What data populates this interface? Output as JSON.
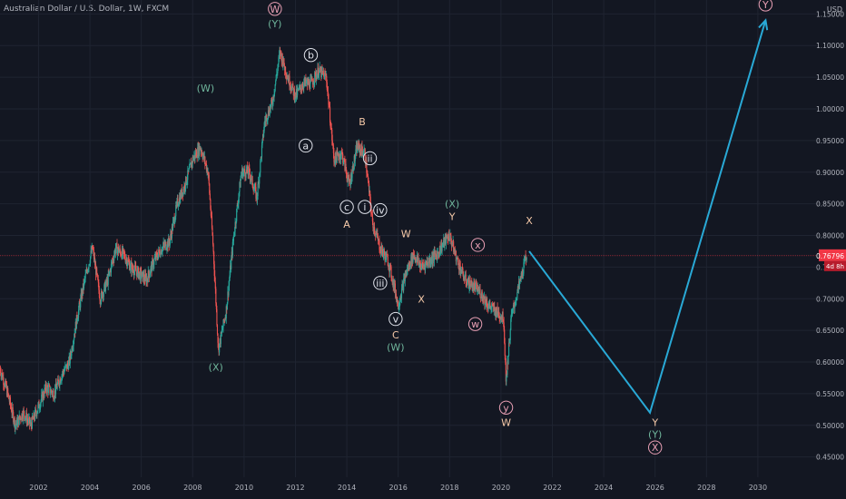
{
  "header": {
    "title": "Australian Dollar / U.S. Dollar, 1W, FXCM"
  },
  "price_axis": {
    "currency": "USD"
  },
  "chart_data": {
    "type": "line",
    "title": "Australian Dollar / U.S. Dollar, 1W, FXCM",
    "xlabel": "",
    "ylabel": "",
    "xlim": [
      2000.5,
      2032.3
    ],
    "ylim": [
      0.418,
      1.172
    ],
    "x_ticks": [
      "2002",
      "2004",
      "2006",
      "2008",
      "2010",
      "2012",
      "2014",
      "2016",
      "2018",
      "2020",
      "2022",
      "2024",
      "2026",
      "2028",
      "2030"
    ],
    "y_ticks": [
      "0.45000",
      "0.50000",
      "0.55000",
      "0.60000",
      "0.65000",
      "0.70000",
      "0.75000",
      "0.80000",
      "0.85000",
      "0.90000",
      "0.95000",
      "1.00000",
      "1.05000",
      "1.10000",
      "1.15000"
    ],
    "grid": true,
    "current_price": {
      "label": "0.76796",
      "value": 0.768,
      "countdown": "4d 8h",
      "color": "#f23645"
    },
    "colors": {
      "up": "#26a69a",
      "down": "#ef5350",
      "projection": "#29a9d6",
      "wave_white": "#e0e3eb",
      "wave_orange": "#f5c9a8",
      "wave_pink": "#e89fb4",
      "wave_green": "#6fb59b"
    },
    "series": [
      {
        "x": [
          2000.5,
          2000.8,
          2001.1,
          2001.4,
          2001.7,
          2002.0,
          2002.3,
          2002.6,
          2002.9,
          2003.2,
          2003.5,
          2003.8,
          2004.1,
          2004.4,
          2004.7,
          2005.0,
          2005.3,
          2005.6,
          2005.9,
          2006.2,
          2006.5,
          2006.8,
          2007.1,
          2007.4,
          2007.7,
          2008.0,
          2008.3,
          2008.6,
          2008.8,
          2009.0,
          2009.3,
          2009.6,
          2009.9,
          2010.2,
          2010.5,
          2010.8,
          2011.1,
          2011.4,
          2011.7,
          2012.0,
          2012.3,
          2012.6,
          2012.9,
          2013.2,
          2013.5,
          2013.8,
          2014.1,
          2014.4,
          2014.7,
          2015.0,
          2015.3,
          2015.6,
          2015.9,
          2016.0,
          2016.3,
          2016.6,
          2016.9,
          2017.2,
          2017.5,
          2017.8,
          2018.0,
          2018.3,
          2018.6,
          2018.9,
          2019.2,
          2019.5,
          2019.8,
          2020.1,
          2020.2,
          2020.4,
          2020.7,
          2021.0
        ],
        "values": [
          0.59,
          0.55,
          0.5,
          0.52,
          0.5,
          0.53,
          0.56,
          0.55,
          0.58,
          0.6,
          0.67,
          0.73,
          0.78,
          0.7,
          0.73,
          0.78,
          0.77,
          0.75,
          0.74,
          0.73,
          0.76,
          0.78,
          0.79,
          0.85,
          0.88,
          0.92,
          0.94,
          0.9,
          0.78,
          0.62,
          0.68,
          0.8,
          0.9,
          0.9,
          0.86,
          0.98,
          1.01,
          1.09,
          1.05,
          1.02,
          1.04,
          1.04,
          1.06,
          1.05,
          0.92,
          0.93,
          0.88,
          0.94,
          0.93,
          0.82,
          0.78,
          0.76,
          0.71,
          0.69,
          0.74,
          0.77,
          0.75,
          0.76,
          0.77,
          0.79,
          0.8,
          0.76,
          0.73,
          0.72,
          0.71,
          0.69,
          0.68,
          0.67,
          0.57,
          0.67,
          0.72,
          0.77
        ]
      },
      {
        "x": [
          2021.1,
          2025.8,
          2030.3
        ],
        "values": [
          0.775,
          0.52,
          1.14
        ]
      }
    ]
  },
  "wave_labels": [
    {
      "text": "W",
      "x": 2011.2,
      "y": 1.158,
      "circle": true,
      "color": "wave_pink"
    },
    {
      "text": "(Y)",
      "x": 2011.2,
      "y": 1.135,
      "circle": false,
      "color": "wave_green"
    },
    {
      "text": "(W)",
      "x": 2008.5,
      "y": 1.033,
      "circle": false,
      "color": "wave_green"
    },
    {
      "text": "(X)",
      "x": 2008.9,
      "y": 0.592,
      "circle": false,
      "color": "wave_green"
    },
    {
      "text": "b",
      "x": 2012.6,
      "y": 1.085,
      "circle": true,
      "color": "wave_white"
    },
    {
      "text": "a",
      "x": 2012.4,
      "y": 0.942,
      "circle": true,
      "color": "wave_white"
    },
    {
      "text": "B",
      "x": 2014.6,
      "y": 0.98,
      "circle": false,
      "color": "wave_orange"
    },
    {
      "text": "ii",
      "x": 2014.9,
      "y": 0.922,
      "circle": true,
      "color": "wave_white"
    },
    {
      "text": "c",
      "x": 2014.0,
      "y": 0.845,
      "circle": true,
      "color": "wave_white"
    },
    {
      "text": "A",
      "x": 2014.0,
      "y": 0.818,
      "circle": false,
      "color": "wave_orange"
    },
    {
      "text": "i",
      "x": 2014.7,
      "y": 0.845,
      "circle": true,
      "color": "wave_white"
    },
    {
      "text": "iv",
      "x": 2015.3,
      "y": 0.84,
      "circle": true,
      "color": "wave_white"
    },
    {
      "text": "W",
      "x": 2016.3,
      "y": 0.803,
      "circle": false,
      "color": "wave_orange"
    },
    {
      "text": "iii",
      "x": 2015.3,
      "y": 0.725,
      "circle": true,
      "color": "wave_white"
    },
    {
      "text": "X",
      "x": 2016.9,
      "y": 0.7,
      "circle": false,
      "color": "wave_orange"
    },
    {
      "text": "v",
      "x": 2015.9,
      "y": 0.668,
      "circle": true,
      "color": "wave_white"
    },
    {
      "text": "C",
      "x": 2015.9,
      "y": 0.643,
      "circle": false,
      "color": "wave_orange"
    },
    {
      "text": "(W)",
      "x": 2015.9,
      "y": 0.624,
      "circle": false,
      "color": "wave_green"
    },
    {
      "text": "(X)",
      "x": 2018.1,
      "y": 0.85,
      "circle": false,
      "color": "wave_green"
    },
    {
      "text": "Y",
      "x": 2018.1,
      "y": 0.83,
      "circle": false,
      "color": "wave_orange"
    },
    {
      "text": "x",
      "x": 2019.1,
      "y": 0.785,
      "circle": true,
      "color": "wave_pink"
    },
    {
      "text": "X",
      "x": 2021.1,
      "y": 0.824,
      "circle": false,
      "color": "wave_orange"
    },
    {
      "text": "w",
      "x": 2019.0,
      "y": 0.66,
      "circle": true,
      "color": "wave_pink"
    },
    {
      "text": "y",
      "x": 2020.2,
      "y": 0.528,
      "circle": true,
      "color": "wave_pink"
    },
    {
      "text": "W",
      "x": 2020.2,
      "y": 0.505,
      "circle": false,
      "color": "wave_orange"
    },
    {
      "text": "Y",
      "x": 2026.0,
      "y": 0.505,
      "circle": false,
      "color": "wave_orange"
    },
    {
      "text": "(Y)",
      "x": 2026.0,
      "y": 0.486,
      "circle": false,
      "color": "wave_green"
    },
    {
      "text": "X",
      "x": 2026.0,
      "y": 0.465,
      "circle": true,
      "color": "wave_pink"
    },
    {
      "text": "Y",
      "x": 2030.3,
      "y": 1.165,
      "circle": true,
      "color": "wave_pink"
    }
  ]
}
